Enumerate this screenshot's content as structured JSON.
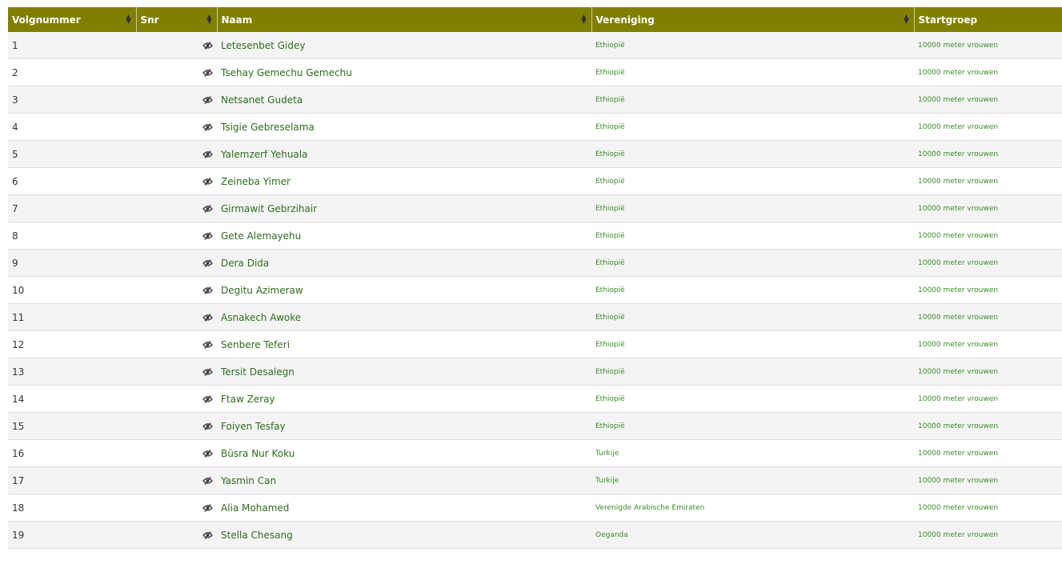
{
  "headers": {
    "volgnummer": "Volgnummer",
    "snr": "Snr",
    "naam": "Naam",
    "vereniging": "Vereniging",
    "startgroep": "Startgroep"
  },
  "colors": {
    "header": "#808000",
    "name_link": "#2e6b1e"
  },
  "row_icon": "eye-slash-icon",
  "rows": [
    {
      "nr": "1",
      "snr": "",
      "naam": "Letesenbet Gidey",
      "vereniging": "Ethiopië",
      "startgroep": "10000 meter vrouwen"
    },
    {
      "nr": "2",
      "snr": "",
      "naam": "Tsehay Gemechu Gemechu",
      "vereniging": "Ethiopië",
      "startgroep": "10000 meter vrouwen"
    },
    {
      "nr": "3",
      "snr": "",
      "naam": "Netsanet Gudeta",
      "vereniging": "Ethiopië",
      "startgroep": "10000 meter vrouwen"
    },
    {
      "nr": "4",
      "snr": "",
      "naam": "Tsigie Gebreselama",
      "vereniging": "Ethiopië",
      "startgroep": "10000 meter vrouwen"
    },
    {
      "nr": "5",
      "snr": "",
      "naam": "Yalemzerf Yehuala",
      "vereniging": "Ethiopië",
      "startgroep": "10000 meter vrouwen"
    },
    {
      "nr": "6",
      "snr": "",
      "naam": "Zeineba Yimer",
      "vereniging": "Ethiopië",
      "startgroep": "10000 meter vrouwen"
    },
    {
      "nr": "7",
      "snr": "",
      "naam": "Girmawit Gebrzihair",
      "vereniging": "Ethiopië",
      "startgroep": "10000 meter vrouwen"
    },
    {
      "nr": "8",
      "snr": "",
      "naam": "Gete Alemayehu",
      "vereniging": "Ethiopië",
      "startgroep": "10000 meter vrouwen"
    },
    {
      "nr": "9",
      "snr": "",
      "naam": "Dera Dida",
      "vereniging": "Ethiopië",
      "startgroep": "10000 meter vrouwen"
    },
    {
      "nr": "10",
      "snr": "",
      "naam": "Degitu Azimeraw",
      "vereniging": "Ethiopië",
      "startgroep": "10000 meter vrouwen"
    },
    {
      "nr": "11",
      "snr": "",
      "naam": "Asnakech Awoke",
      "vereniging": "Ethiopië",
      "startgroep": "10000 meter vrouwen"
    },
    {
      "nr": "12",
      "snr": "",
      "naam": "Senbere Teferi",
      "vereniging": "Ethiopië",
      "startgroep": "10000 meter vrouwen"
    },
    {
      "nr": "13",
      "snr": "",
      "naam": "Tersit Desalegn",
      "vereniging": "Ethiopië",
      "startgroep": "10000 meter vrouwen"
    },
    {
      "nr": "14",
      "snr": "",
      "naam": "Ftaw Zeray",
      "vereniging": "Ethiopië",
      "startgroep": "10000 meter vrouwen"
    },
    {
      "nr": "15",
      "snr": "",
      "naam": "Foiyen Tesfay",
      "vereniging": "Ethiopië",
      "startgroep": "10000 meter vrouwen"
    },
    {
      "nr": "16",
      "snr": "",
      "naam": "Büsra Nur Koku",
      "vereniging": "Turkije",
      "startgroep": "10000 meter vrouwen"
    },
    {
      "nr": "17",
      "snr": "",
      "naam": "Yasmin Can",
      "vereniging": "Turkije",
      "startgroep": "10000 meter vrouwen"
    },
    {
      "nr": "18",
      "snr": "",
      "naam": "Alia Mohamed",
      "vereniging": "Verenigde Arabische Emiraten",
      "startgroep": "10000 meter vrouwen"
    },
    {
      "nr": "19",
      "snr": "",
      "naam": "Stella Chesang",
      "vereniging": "Oeganda",
      "startgroep": "10000 meter vrouwen"
    }
  ]
}
